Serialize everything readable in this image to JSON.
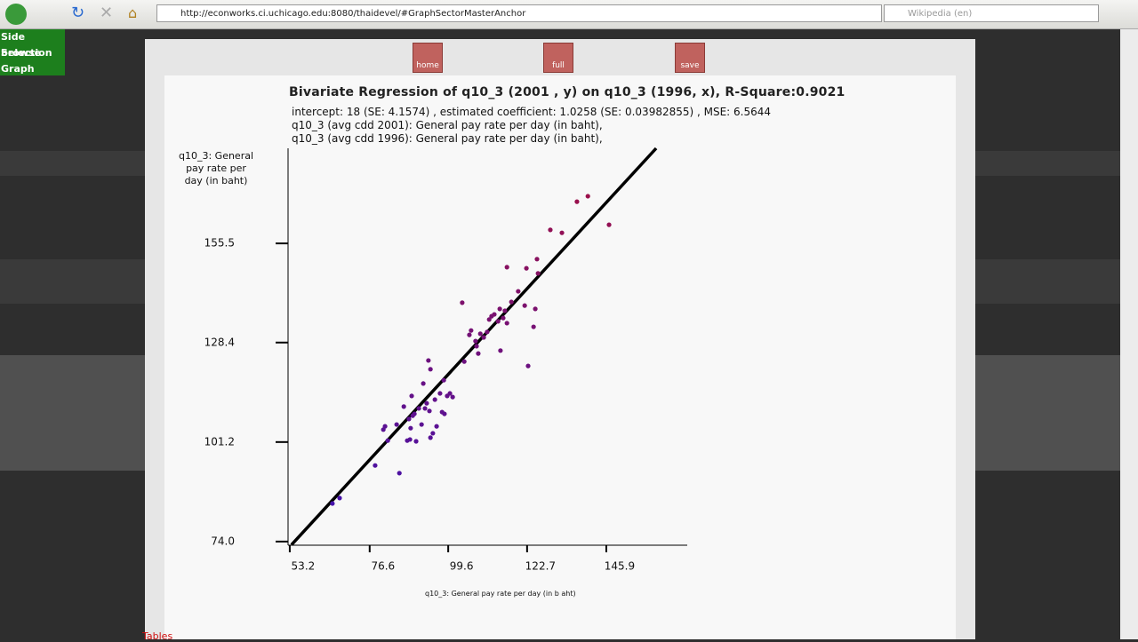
{
  "ui": {
    "url": "http://econworks.ci.uchicago.edu:8080/thaidevel/#GraphSectorMasterAnchor",
    "search": "Wikipedia (en)",
    "sidebar": [
      "Side browse",
      "Selection",
      "Graph"
    ],
    "buttons": [
      "home",
      "full",
      "save"
    ],
    "tab": "Tables"
  },
  "chart_data": {
    "type": "scatter",
    "title": "Bivariate Regression of q10_3 (2001 , y) on q10_3 (1996, x), R-Square:0.9021",
    "subtitle": [
      "intercept: 18 (SE: 4.1574) , estimated coefficient: 1.0258 (SE: 0.03982855) , MSE: 6.5644",
      "q10_3 (avg cdd 2001): General pay rate per day (in baht),",
      "q10_3 (avg cdd 1996): General pay rate per day (in baht),"
    ],
    "ylabel": "q10_3: General pay rate per day (in baht)",
    "xlabel": "q10_3: General pay rate per day (in b aht)",
    "xlim": [
      52.7,
      169.6
    ],
    "ylim": [
      73,
      181.5
    ],
    "xticks": [
      53.2,
      76.6,
      99.6,
      122.7,
      145.9
    ],
    "yticks": [
      {
        "value": 74.0,
        "label": "74.0"
      },
      101.2,
      128.4,
      155.5
    ],
    "color_range": [
      "#3a12b8",
      "#a8103c"
    ],
    "x": [
      65.7,
      67.8,
      78.2,
      85.3,
      81.9,
      80.6,
      81.1,
      84.5,
      86.6,
      87.6,
      88.4,
      88.6,
      88.1,
      88.9,
      89.2,
      89.7,
      90.2,
      91.0,
      91.8,
      92.3,
      92.8,
      93.3,
      93.8,
      94.4,
      94.4,
      94.1,
      95.1,
      95.7,
      96.2,
      97.2,
      97.8,
      98.3,
      98.5,
      99.3,
      100.1,
      100.9,
      103.7,
      104.3,
      105.8,
      106.3,
      107.6,
      107.9,
      108.4,
      109.0,
      110.0,
      111.0,
      111.6,
      112.3,
      113.1,
      114.2,
      114.7,
      114.9,
      115.7,
      116.2,
      116.8,
      116.8,
      118.1,
      120.1,
      122.0,
      122.5,
      123.0,
      124.6,
      125.1,
      125.6,
      125.9,
      129.5,
      132.9,
      137.3,
      140.5,
      146.7
    ],
    "values": [
      84.4,
      85.9,
      94.8,
      92.7,
      101.6,
      104.6,
      105.5,
      106.0,
      110.9,
      101.6,
      101.9,
      105.0,
      107.5,
      113.8,
      108.4,
      108.9,
      101.4,
      110.4,
      106.0,
      117.2,
      110.4,
      111.8,
      123.5,
      121.1,
      102.4,
      109.7,
      103.6,
      112.8,
      105.5,
      114.5,
      109.4,
      118.1,
      108.9,
      113.8,
      114.5,
      113.5,
      139.3,
      123.2,
      130.5,
      131.7,
      128.8,
      127.4,
      125.4,
      130.8,
      129.8,
      131.3,
      134.7,
      135.6,
      136.1,
      134.2,
      137.6,
      126.2,
      135.1,
      137.1,
      133.7,
      149.0,
      139.5,
      142.4,
      138.5,
      148.7,
      122.0,
      132.7,
      137.6,
      151.2,
      147.3,
      159.2,
      158.4,
      166.9,
      168.4,
      160.6
    ],
    "fit_line": {
      "x": [
        53.7,
        160.5
      ],
      "values": [
        73.1,
        181.5
      ],
      "color": "#000000"
    }
  }
}
